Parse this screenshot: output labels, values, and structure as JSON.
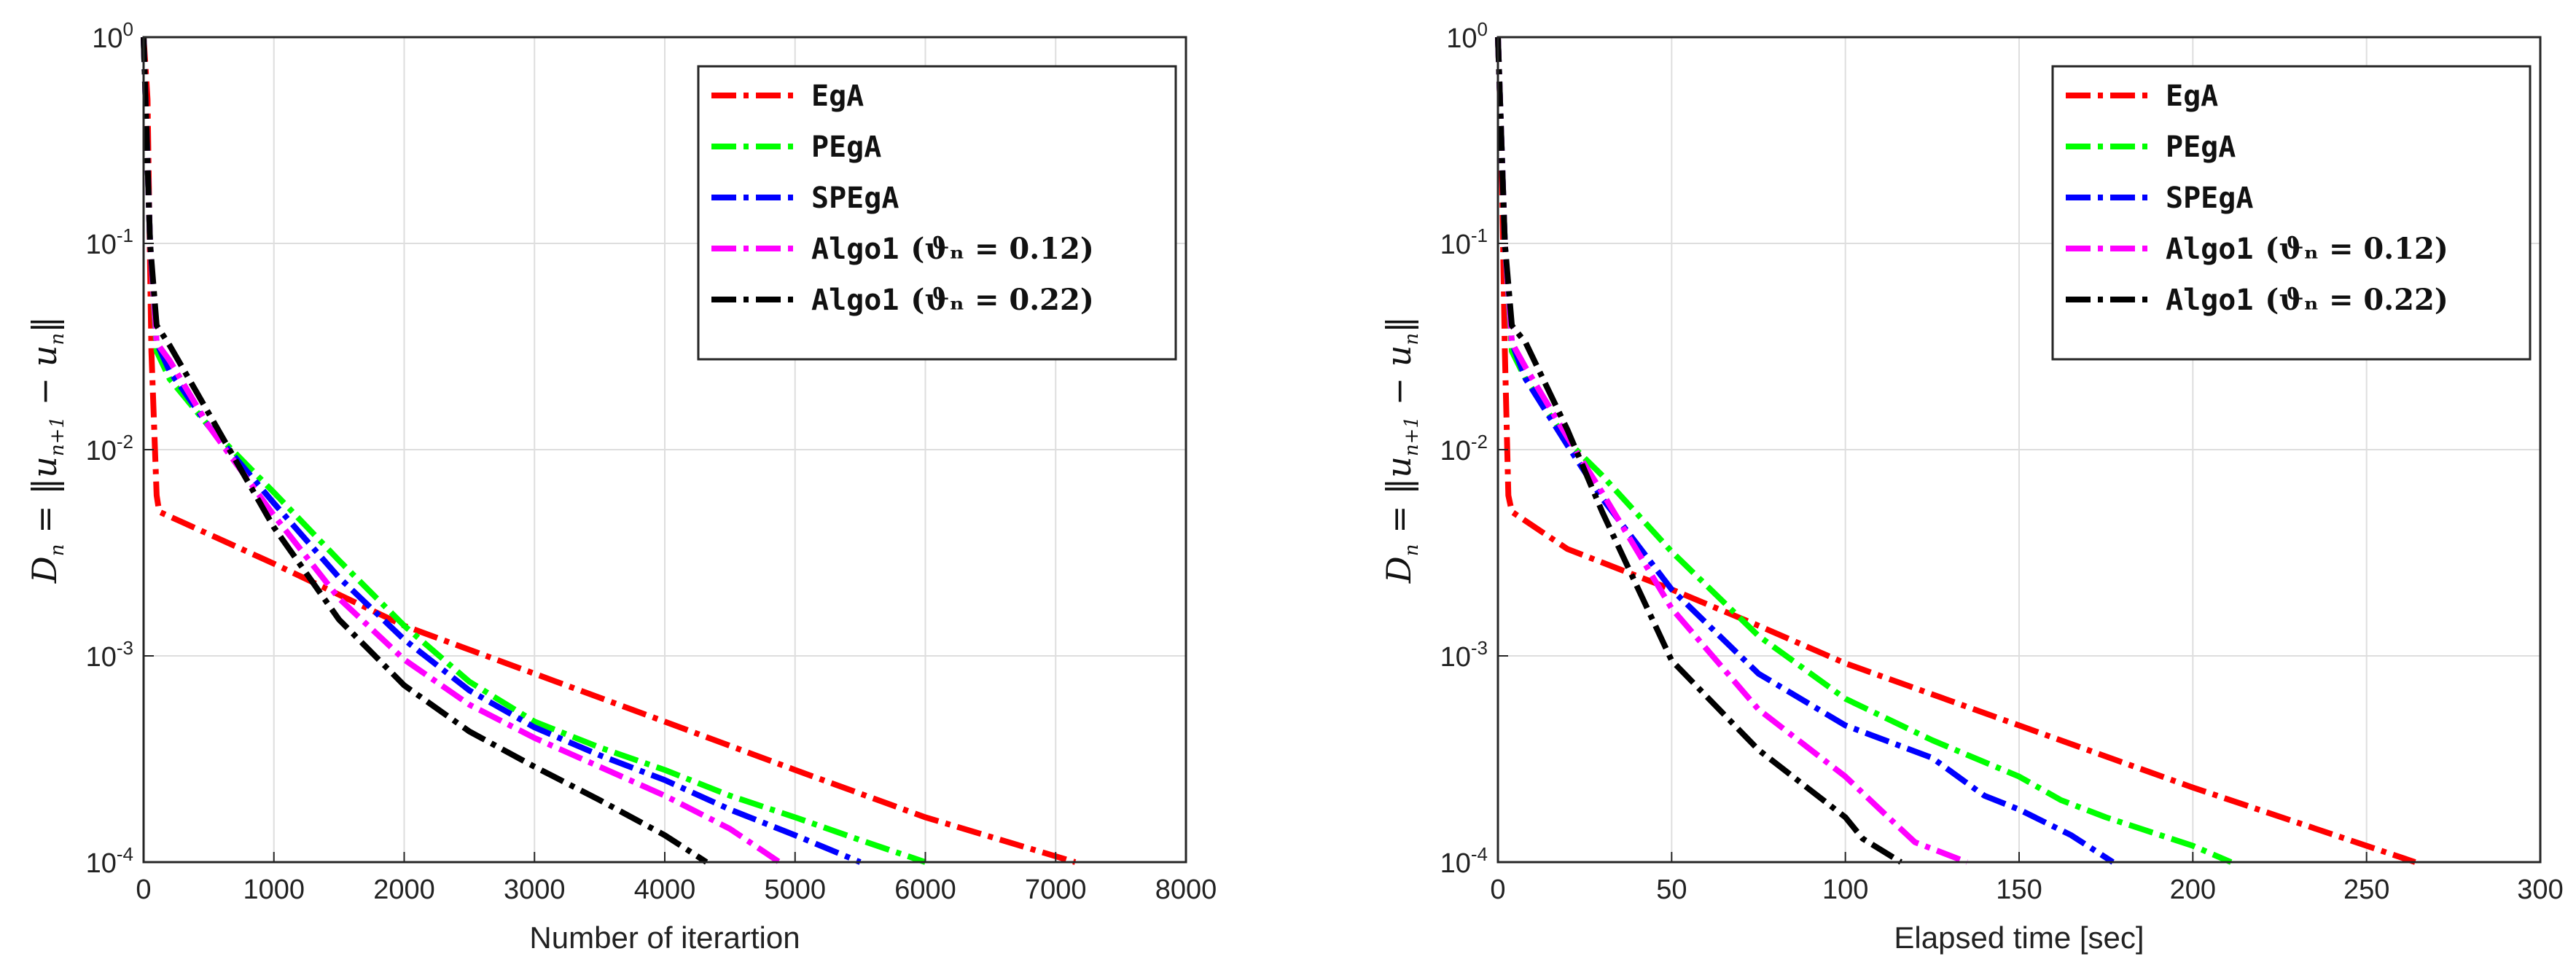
{
  "chart_data": [
    {
      "type": "line",
      "xscale": "linear",
      "yscale": "log",
      "xlabel": "Number of iterartion",
      "ylabel": "D_n = ||u_{n+1} - u_n||",
      "xlim": [
        0,
        8000
      ],
      "ylim": [
        0.0001,
        1
      ],
      "xticks": [
        0,
        1000,
        2000,
        3000,
        4000,
        5000,
        6000,
        7000,
        8000
      ],
      "yticks": [
        1,
        0.1,
        0.01,
        0.001,
        0.0001
      ],
      "ytick_labels": [
        {
          "base": "10",
          "exp": "0"
        },
        {
          "base": "10",
          "exp": "-1"
        },
        {
          "base": "10",
          "exp": "-2"
        },
        {
          "base": "10",
          "exp": "-3"
        },
        {
          "base": "10",
          "exp": "-4"
        }
      ],
      "grid": true,
      "legend_position": "top-right",
      "series": [
        {
          "name": "EgA",
          "color": "#ff0000",
          "x": [
            0,
            30,
            60,
            100,
            120,
            1000,
            2000,
            3000,
            4000,
            5000,
            6000,
            7150
          ],
          "y": [
            1,
            0.5,
            0.03,
            0.006,
            0.005,
            0.0028,
            0.0014,
            0.00082,
            0.00048,
            0.00028,
            0.000165,
            0.0001
          ]
        },
        {
          "name": "PEgA",
          "color": "#00ff00",
          "x": [
            0,
            50,
            100,
            200,
            500,
            1000,
            1500,
            2000,
            2500,
            3000,
            3500,
            4000,
            4500,
            5000,
            5500,
            6000
          ],
          "y": [
            1,
            0.1,
            0.03,
            0.022,
            0.013,
            0.0062,
            0.0029,
            0.0014,
            0.00075,
            0.00048,
            0.00036,
            0.00028,
            0.00021,
            0.000165,
            0.000128,
            0.0001
          ]
        },
        {
          "name": "SPEgA",
          "color": "#0000ff",
          "x": [
            0,
            50,
            100,
            200,
            500,
            1000,
            1500,
            2000,
            2500,
            3000,
            3500,
            4000,
            4500,
            5000,
            5500
          ],
          "y": [
            1,
            0.1,
            0.033,
            0.024,
            0.013,
            0.0055,
            0.0024,
            0.0012,
            0.00068,
            0.00045,
            0.00033,
            0.00025,
            0.00018,
            0.000135,
            0.0001
          ]
        },
        {
          "name": "Algo1 (θn = 0.12)",
          "color": "#ff00ff",
          "x": [
            0,
            50,
            100,
            200,
            500,
            1000,
            1500,
            2000,
            2500,
            3000,
            3500,
            4000,
            4500,
            4880
          ],
          "y": [
            1,
            0.1,
            0.033,
            0.027,
            0.013,
            0.0048,
            0.0019,
            0.00096,
            0.00058,
            0.0004,
            0.00029,
            0.00021,
            0.000145,
            0.0001
          ]
        },
        {
          "name": "Algo1 (θn = 0.22)",
          "color": "#000000",
          "x": [
            0,
            50,
            100,
            200,
            500,
            1000,
            1500,
            2000,
            2500,
            3000,
            3500,
            4000,
            4320
          ],
          "y": [
            1,
            0.1,
            0.04,
            0.032,
            0.015,
            0.0042,
            0.0015,
            0.00072,
            0.00043,
            0.00029,
            0.0002,
            0.000135,
            0.0001
          ]
        }
      ]
    },
    {
      "type": "line",
      "xscale": "linear",
      "yscale": "log",
      "xlabel": "Elapsed time [sec]",
      "ylabel": "D_n = ||u_{n+1} - u_n||",
      "xlim": [
        0,
        300
      ],
      "ylim": [
        0.0001,
        1
      ],
      "xticks": [
        0,
        50,
        100,
        150,
        200,
        250,
        300
      ],
      "yticks": [
        1,
        0.1,
        0.01,
        0.001,
        0.0001
      ],
      "ytick_labels": [
        {
          "base": "10",
          "exp": "0"
        },
        {
          "base": "10",
          "exp": "-1"
        },
        {
          "base": "10",
          "exp": "-2"
        },
        {
          "base": "10",
          "exp": "-3"
        },
        {
          "base": "10",
          "exp": "-4"
        }
      ],
      "grid": true,
      "legend_position": "top-right",
      "series": [
        {
          "name": "EgA",
          "color": "#ff0000",
          "x": [
            0,
            1,
            2,
            3,
            4,
            20,
            50,
            75,
            100,
            150,
            200,
            264
          ],
          "y": [
            1,
            0.3,
            0.03,
            0.006,
            0.005,
            0.0033,
            0.0021,
            0.0014,
            0.00092,
            0.00046,
            0.00023,
            0.0001
          ]
        },
        {
          "name": "PEgA",
          "color": "#00ff00",
          "x": [
            0,
            2,
            4,
            8,
            20,
            30,
            50,
            75,
            100,
            125,
            150,
            162,
            175,
            200,
            211
          ],
          "y": [
            1,
            0.1,
            0.03,
            0.022,
            0.011,
            0.0075,
            0.0032,
            0.00125,
            0.00062,
            0.00039,
            0.00026,
            0.0002,
            0.000165,
            0.00012,
            0.0001
          ]
        },
        {
          "name": "SPEgA",
          "color": "#0000ff",
          "x": [
            0,
            2,
            4,
            8,
            20,
            30,
            50,
            75,
            100,
            125,
            140,
            150,
            165,
            177
          ],
          "y": [
            1,
            0.1,
            0.033,
            0.022,
            0.0105,
            0.0058,
            0.0021,
            0.00082,
            0.00046,
            0.00032,
            0.00021,
            0.00018,
            0.000135,
            0.0001
          ]
        },
        {
          "name": "Algo1 (θn = 0.12)",
          "color": "#ff00ff",
          "x": [
            0,
            2,
            4,
            8,
            20,
            30,
            50,
            75,
            100,
            110,
            120,
            135
          ],
          "y": [
            1,
            0.1,
            0.033,
            0.025,
            0.0115,
            0.0062,
            0.0017,
            0.00055,
            0.00026,
            0.00018,
            0.000125,
            0.0001
          ]
        },
        {
          "name": "Algo1 (θn = 0.22)",
          "color": "#000000",
          "x": [
            0,
            2,
            4,
            8,
            20,
            30,
            50,
            75,
            100,
            105,
            116
          ],
          "y": [
            1,
            0.1,
            0.04,
            0.033,
            0.0125,
            0.005,
            0.00095,
            0.00035,
            0.000165,
            0.00013,
            0.0001
          ]
        }
      ]
    }
  ],
  "legend": {
    "entries": [
      {
        "label": "EgA",
        "color": "#ff0000"
      },
      {
        "label": "PEgA",
        "color": "#00ff00"
      },
      {
        "label": "SPEgA",
        "color": "#0000ff"
      },
      {
        "label": "Algo1",
        "math": "(ϑₙ = 0.12)",
        "color": "#ff00ff"
      },
      {
        "label": "Algo1",
        "math": "(ϑₙ = 0.22)",
        "color": "#000000"
      }
    ]
  }
}
